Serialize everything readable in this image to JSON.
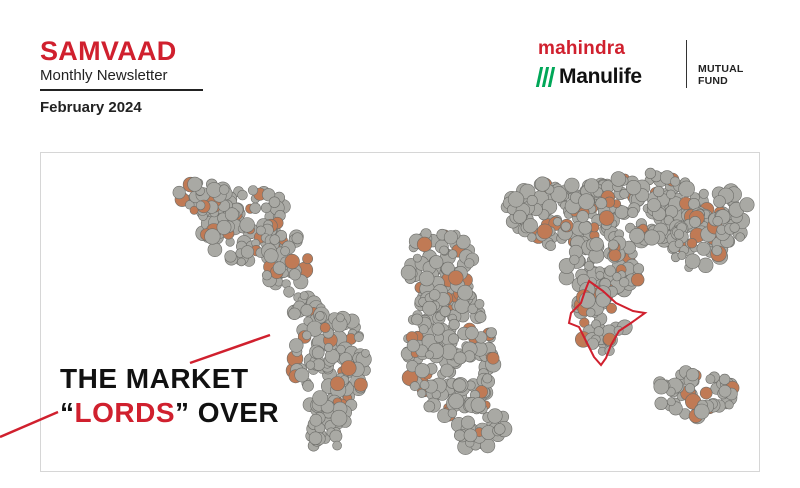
{
  "masthead": {
    "title": "SAMVAAD",
    "subtitle": "Monthly Newsletter",
    "date": "February 2024"
  },
  "logo": {
    "brand_top": "mahindra",
    "brand_bottom": "Manulife",
    "tag_line1": "MUTUAL",
    "tag_line2": "FUND"
  },
  "headline": {
    "line1": "THE MARKET",
    "open_quote": "“",
    "highlight": "LORDS",
    "close_rest": "” OVER"
  },
  "colors": {
    "accent": "#d0202e",
    "manulife_green": "#00a758",
    "coin_silver": "#a9a9a4",
    "coin_copper": "#c07a55"
  },
  "illustration": {
    "icon": "world-map-made-of-coins-icon",
    "highlight_region_icon": "india-outline-icon"
  }
}
